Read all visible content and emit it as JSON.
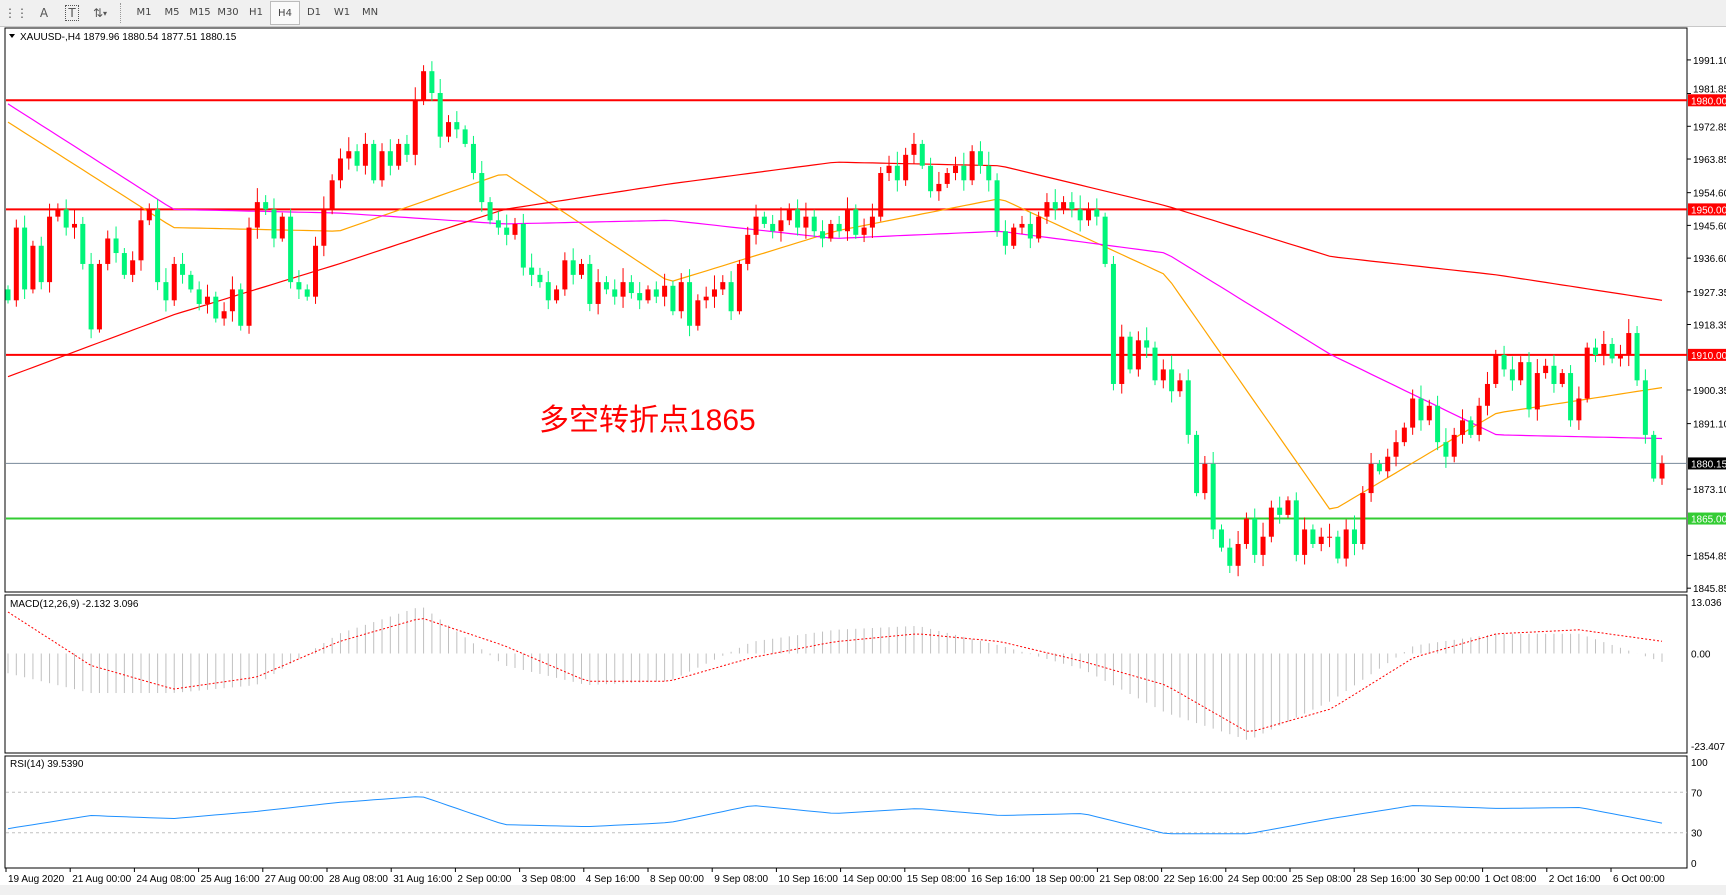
{
  "toolbar": {
    "tools": [
      {
        "icon": "grid-icon",
        "label": ""
      },
      {
        "icon": "text-icon",
        "label": "A"
      },
      {
        "icon": "text-label-icon",
        "label": "T"
      },
      {
        "icon": "arrows-icon",
        "label": "▾"
      }
    ],
    "timeframes": [
      "M1",
      "M5",
      "M15",
      "M30",
      "H1",
      "H4",
      "D1",
      "W1",
      "MN"
    ],
    "active_timeframe": "H4"
  },
  "header": {
    "symbol_info": "XAUUSD-,H4  1879.96 1880.54 1877.51 1880.15"
  },
  "annotation": {
    "text": "多空转折点1865",
    "color": "#ff0000"
  },
  "colors": {
    "bull": "#ff0000",
    "bear": "#00f57a",
    "ma_fast": "#ffa500",
    "ma_mid": "#ff00ff",
    "ma_slow": "#ff0000",
    "macd_signal": "#ff0000",
    "macd_hist": "#c0c0c0",
    "rsi": "#1e90ff"
  },
  "chart_data": [
    {
      "type": "candlestick",
      "title": "XAUUSD-,H4",
      "ylim": [
        1844.8,
        1999.6
      ],
      "y_ticks": [
        "1991.10",
        "1981.85",
        "1972.85",
        "1963.85",
        "1954.60",
        "1945.60",
        "1936.60",
        "1927.35",
        "1918.35",
        "1900.35",
        "1891.10",
        "1873.10",
        "1854.85",
        "1845.85"
      ],
      "x_ticks": [
        "19 Aug 2020",
        "21 Aug 00:00",
        "24 Aug 08:00",
        "25 Aug 16:00",
        "27 Aug 00:00",
        "28 Aug 08:00",
        "31 Aug 16:00",
        "2 Sep 00:00",
        "3 Sep 08:00",
        "4 Sep 16:00",
        "8 Sep 00:00",
        "9 Sep 08:00",
        "10 Sep 16:00",
        "14 Sep 00:00",
        "15 Sep 08:00",
        "16 Sep 16:00",
        "18 Sep 00:00",
        "21 Sep 08:00",
        "22 Sep 16:00",
        "24 Sep 00:00",
        "25 Sep 08:00",
        "28 Sep 16:00",
        "30 Sep 00:00",
        "1 Oct 08:00",
        "2 Oct 16:00",
        "6 Oct 00:00"
      ],
      "close": [
        1925,
        1945,
        1928,
        1940,
        1930,
        1948,
        1950,
        1945,
        1946,
        1935,
        1917,
        1935,
        1942,
        1938,
        1932,
        1936,
        1947,
        1950,
        1930,
        1925,
        1935,
        1932,
        1928,
        1924,
        1926,
        1920,
        1922,
        1928,
        1918,
        1945,
        1952,
        1950,
        1942,
        1948,
        1930,
        1928,
        1926,
        1940,
        1950,
        1958,
        1964,
        1966,
        1962,
        1968,
        1958,
        1966,
        1962,
        1968,
        1965,
        1980,
        1988,
        1982,
        1970,
        1974,
        1972,
        1968,
        1960,
        1952,
        1947,
        1945,
        1943,
        1946,
        1934,
        1932,
        1930,
        1925,
        1928,
        1936,
        1932,
        1935,
        1924,
        1930,
        1928,
        1926,
        1930,
        1927,
        1925,
        1928,
        1926,
        1929,
        1922,
        1930,
        1918,
        1925,
        1926,
        1928,
        1930,
        1922,
        1935,
        1943,
        1948,
        1946,
        1944,
        1947,
        1950,
        1945,
        1948,
        1944,
        1942,
        1946,
        1944,
        1950,
        1943,
        1945,
        1948,
        1960,
        1962,
        1958,
        1965,
        1968,
        1962,
        1955,
        1957,
        1960,
        1962,
        1958,
        1966,
        1962,
        1958,
        1944,
        1940,
        1945,
        1946,
        1942,
        1948,
        1952,
        1950,
        1952,
        1950,
        1947,
        1950,
        1948,
        1935,
        1902,
        1915,
        1906,
        1914,
        1912,
        1903,
        1906,
        1900,
        1903,
        1888,
        1872,
        1880,
        1862,
        1857,
        1852,
        1858,
        1865,
        1855,
        1860,
        1868,
        1866,
        1870,
        1855,
        1862,
        1858,
        1860,
        1860,
        1854,
        1862,
        1858,
        1872,
        1880,
        1878,
        1882,
        1886,
        1890,
        1898,
        1892,
        1896,
        1886,
        1882,
        1888,
        1892,
        1888,
        1896,
        1902,
        1910,
        1906,
        1903,
        1908,
        1895,
        1905,
        1907,
        1902,
        1905,
        1892,
        1898,
        1912,
        1910,
        1913,
        1909,
        1910,
        1916,
        1903,
        1888,
        1876,
        1880.15
      ],
      "moving_averages": [
        {
          "role": "fast",
          "sample_every_bars": 20,
          "values": [
            1974,
            1945,
            1944,
            1960,
            1930,
            1944,
            1953,
            1932,
            1867,
            1894,
            1901
          ]
        },
        {
          "role": "mid",
          "sample_every_bars": 20,
          "values": [
            1979,
            1950,
            1949,
            1946,
            1947,
            1942,
            1944,
            1938,
            1910,
            1888,
            1887
          ]
        },
        {
          "role": "slow",
          "sample_every_bars": 20,
          "values": [
            1904,
            1921,
            1935,
            1950,
            1957,
            1963,
            1962,
            1951,
            1937,
            1932,
            1925
          ]
        }
      ],
      "horizontal_lines": [
        {
          "price": 1980.0,
          "label": "1980.00",
          "color": "#ff0000"
        },
        {
          "price": 1950.0,
          "label": "1950.00",
          "color": "#ff0000"
        },
        {
          "price": 1910.0,
          "label": "1910.00",
          "color": "#ff0000"
        },
        {
          "price": 1865.0,
          "label": "1865.00",
          "color": "#33cc33"
        },
        {
          "price": 1880.15,
          "label": "1880.15",
          "color": "#778899",
          "current": true
        }
      ]
    },
    {
      "type": "bar+line",
      "title": "MACD(12,26,9) -2.132 3.096",
      "ylim": [
        -23.407,
        13.036
      ],
      "y_ticks": [
        "13.036",
        "0.00",
        "-23.407"
      ],
      "sample_every_bars": 10,
      "histogram": [
        -5,
        -10,
        -10,
        -8,
        5,
        12,
        -3,
        -8,
        -7,
        3,
        6,
        7,
        2,
        -4,
        -15,
        -22,
        -12,
        2,
        5,
        5,
        -2.132
      ],
      "signal": [
        10.5,
        -3,
        -9,
        -6,
        3,
        9,
        2,
        -7,
        -7,
        -1,
        3,
        5,
        3,
        -2,
        -8,
        -20,
        -14,
        -1,
        5,
        6,
        3.096
      ]
    },
    {
      "type": "line",
      "title": "RSI(14) 39.5390",
      "ylim": [
        0,
        100
      ],
      "y_ticks": [
        "100",
        "70",
        "30",
        "0"
      ],
      "levels": [
        70,
        30
      ],
      "sample_every_bars": 10,
      "values": [
        34,
        47,
        44,
        51,
        60,
        66,
        38,
        36,
        40,
        57,
        49,
        54,
        47,
        49,
        29,
        29,
        44,
        57,
        54,
        55,
        39.539
      ]
    }
  ]
}
